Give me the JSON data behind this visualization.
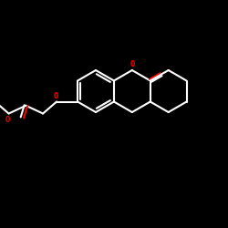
{
  "bg_color": "#000000",
  "bond_color": "#ffffff",
  "oxygen_color": "#ff0000",
  "line_width": 1.5,
  "fig_size": [
    2.5,
    2.5
  ],
  "dpi": 100,
  "xlim": [
    0,
    10
  ],
  "ylim": [
    0,
    10
  ]
}
